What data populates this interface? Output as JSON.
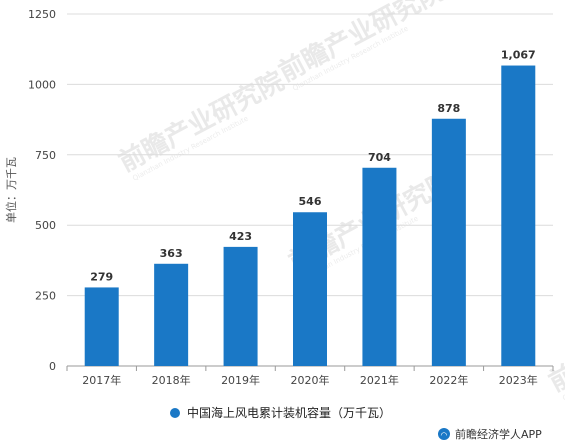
{
  "chart_data": {
    "type": "bar",
    "categories": [
      "2017年",
      "2018年",
      "2019年",
      "2020年",
      "2021年",
      "2022年",
      "2023年"
    ],
    "series": [
      {
        "name": "中国海上风电累计装机容量（万千瓦）",
        "values": [
          279,
          363,
          423,
          546,
          704,
          878,
          1067
        ]
      }
    ],
    "data_labels": [
      "279",
      "363",
      "423",
      "546",
      "704",
      "878",
      "1,067"
    ],
    "ylabel": "单位：万千瓦",
    "ylim": [
      0,
      1250
    ],
    "yticks": [
      0,
      250,
      500,
      750,
      1000,
      1250
    ],
    "ytick_labels": [
      "0",
      "250",
      "500",
      "750",
      "1000",
      "1250"
    ],
    "grid": true,
    "legend_position": "bottom",
    "bar_color": "#1a78c6"
  },
  "watermark": {
    "text": "前瞻产业研究院",
    "subtext": "Qianzhan Industry Research Institute"
  },
  "footer": {
    "brand": "前瞻经济学人APP",
    "logo_color": "#1a78c6"
  }
}
